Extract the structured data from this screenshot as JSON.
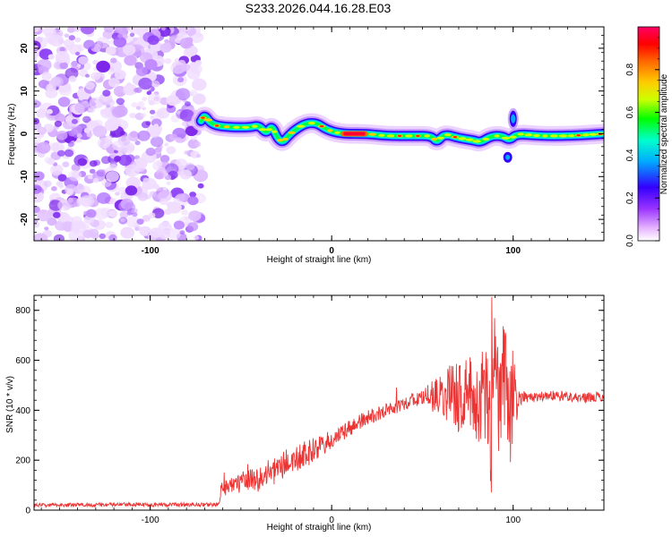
{
  "title": "S233.2026.044.16.28.E03",
  "chart_data": [
    {
      "type": "heatmap",
      "name": "spectrogram",
      "xlabel": "Height of straight line (km)",
      "ylabel": "Frequency (Hz)",
      "xlim": [
        -164,
        150
      ],
      "ylim": [
        -25,
        25
      ],
      "xticks": [
        "-100",
        "0",
        "100"
      ],
      "yticks": [
        "20",
        "10",
        "0",
        "-10",
        "-20"
      ],
      "noise_region_x": [
        -164,
        -72
      ],
      "track_segments": [
        {
          "x": -72,
          "y": 3
        },
        {
          "x": -70,
          "y": 4.5
        },
        {
          "x": -66,
          "y": 2
        },
        {
          "x": -55,
          "y": 1.5
        },
        {
          "x": -45,
          "y": 1.5
        },
        {
          "x": -40,
          "y": 2
        },
        {
          "x": -36,
          "y": 0
        },
        {
          "x": -33,
          "y": 2
        },
        {
          "x": -30,
          "y": -1
        },
        {
          "x": -27,
          "y": -2
        },
        {
          "x": -24,
          "y": -0.5
        },
        {
          "x": -20,
          "y": 1
        },
        {
          "x": -14,
          "y": 2.5
        },
        {
          "x": -8,
          "y": 2.5
        },
        {
          "x": -3,
          "y": 1
        },
        {
          "x": 5,
          "y": 0
        },
        {
          "x": 20,
          "y": 0
        },
        {
          "x": 30,
          "y": -0.5
        },
        {
          "x": 45,
          "y": -0.5
        },
        {
          "x": 55,
          "y": -0.5
        },
        {
          "x": 58,
          "y": -2
        },
        {
          "x": 62,
          "y": 0
        },
        {
          "x": 70,
          "y": -1
        },
        {
          "x": 78,
          "y": -1.5
        },
        {
          "x": 82,
          "y": -2
        },
        {
          "x": 88,
          "y": -0.5
        },
        {
          "x": 94,
          "y": -0.5
        },
        {
          "x": 98,
          "y": -1.5
        },
        {
          "x": 102,
          "y": 0
        },
        {
          "x": 115,
          "y": -0.5
        },
        {
          "x": 130,
          "y": -0.5
        },
        {
          "x": 150,
          "y": 0
        }
      ],
      "peak_amplitude_region_x": [
        5,
        20
      ],
      "colorbar": {
        "label": "Normalized spectral amplitude",
        "range": [
          0,
          1
        ],
        "ticks": [
          "0.0",
          "0.2",
          "0.4",
          "0.6",
          "0.8"
        ],
        "colors": [
          "#ffffff",
          "#e6b3ff",
          "#9933ff",
          "#3300ff",
          "#00aaff",
          "#00ffcc",
          "#00ff00",
          "#ccff00",
          "#ffcc00",
          "#ff6600",
          "#ff0000",
          "#ff0066"
        ]
      }
    },
    {
      "type": "line",
      "name": "snr",
      "xlabel": "Height of straight line (km)",
      "ylabel": "SNR (10 * v/v)",
      "xlim": [
        -164,
        150
      ],
      "ylim": [
        0,
        860
      ],
      "xticks": [
        "-100",
        "0",
        "100"
      ],
      "yticks": [
        "0",
        "200",
        "400",
        "600",
        "800"
      ],
      "color": "#ee3333",
      "x": [
        -164,
        -120,
        -80,
        -62,
        -61,
        -55,
        -50,
        -45,
        -40,
        -35,
        -30,
        -25,
        -20,
        -15,
        -10,
        -5,
        0,
        5,
        10,
        20,
        30,
        40,
        50,
        55,
        60,
        65,
        70,
        75,
        80,
        85,
        88,
        90,
        92,
        95,
        98,
        100,
        102,
        105,
        110,
        120,
        130,
        140,
        150
      ],
      "y": [
        20,
        22,
        22,
        22,
        80,
        110,
        100,
        130,
        120,
        150,
        160,
        190,
        200,
        220,
        240,
        260,
        280,
        300,
        330,
        370,
        400,
        430,
        450,
        455,
        460,
        470,
        450,
        480,
        420,
        480,
        300,
        600,
        420,
        520,
        380,
        480,
        420,
        460,
        450,
        460,
        455,
        450,
        455
      ],
      "noise_amplitude": [
        8,
        8,
        8,
        8,
        30,
        40,
        40,
        45,
        50,
        50,
        55,
        55,
        55,
        55,
        50,
        45,
        40,
        35,
        35,
        30,
        30,
        30,
        30,
        60,
        90,
        120,
        140,
        150,
        160,
        200,
        250,
        260,
        270,
        250,
        240,
        180,
        60,
        25,
        20,
        20,
        20,
        20,
        20
      ]
    }
  ]
}
